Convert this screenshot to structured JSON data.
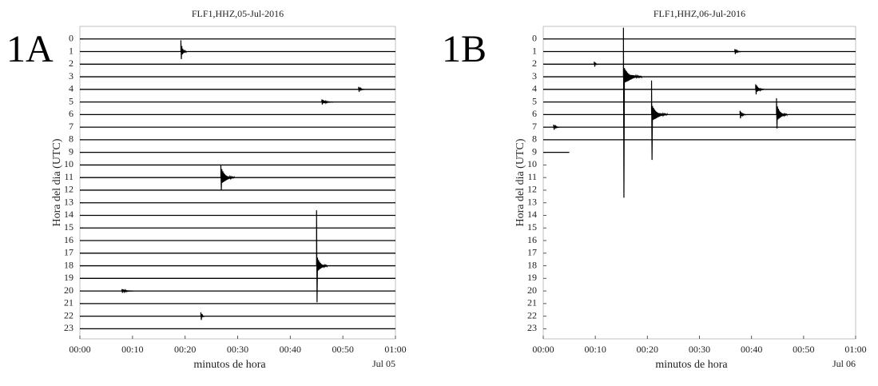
{
  "chart_data": [
    {
      "type": "helicorder",
      "panel_label": "1A",
      "title": "FLF1,HHZ,05-Jul-2016",
      "xlabel": "minutos de hora",
      "ylabel": "Hora del dia (UTC)",
      "date_label": "Jul 05",
      "xlim": [
        0,
        60
      ],
      "ylim": [
        23.8,
        -1.0
      ],
      "xticks": [
        {
          "value": 0,
          "label": "00:00"
        },
        {
          "value": 10,
          "label": "00:10"
        },
        {
          "value": 20,
          "label": "00:20"
        },
        {
          "value": 30,
          "label": "00:30"
        },
        {
          "value": 40,
          "label": "00:40"
        },
        {
          "value": 50,
          "label": "00:50"
        },
        {
          "value": 60,
          "label": "01:00"
        }
      ],
      "yticks": [
        0,
        1,
        2,
        3,
        4,
        5,
        6,
        7,
        8,
        9,
        10,
        11,
        12,
        13,
        14,
        15,
        16,
        17,
        18,
        19,
        20,
        21,
        22,
        23
      ],
      "trace_end": [
        60,
        60,
        60,
        60,
        60,
        60,
        60,
        60,
        60,
        60,
        60,
        60,
        60,
        60,
        60,
        60,
        60,
        60,
        60,
        60,
        60,
        60,
        60,
        60
      ],
      "color": "#000000",
      "events": [
        {
          "hour": 1,
          "minute": 19.2,
          "up": 0.9,
          "down": 0.6,
          "duration": 1
        },
        {
          "hour": 11,
          "minute": 26.8,
          "up": 1.0,
          "down": 1.0,
          "duration": 2.5
        },
        {
          "hour": 18,
          "minute": 45,
          "up": 4.4,
          "down": 2.9,
          "duration": 2
        },
        {
          "hour": 5,
          "minute": 46,
          "up": 0.2,
          "down": 0.2,
          "duration": 2
        },
        {
          "hour": 4,
          "minute": 53,
          "up": 0.2,
          "down": 0.2,
          "duration": 1
        },
        {
          "hour": 20,
          "minute": 8,
          "up": 0.15,
          "down": 0.15,
          "duration": 2
        },
        {
          "hour": 22,
          "minute": 23,
          "up": 0.3,
          "down": 0.3,
          "duration": 0.5
        }
      ]
    },
    {
      "type": "helicorder",
      "panel_label": "1B",
      "title": "FLF1,HHZ,06-Jul-2016",
      "xlabel": "minutos de hora",
      "ylabel": "Hora del dia (UTC)",
      "date_label": "Jul 06",
      "xlim": [
        0,
        60
      ],
      "ylim": [
        23.8,
        -1.0
      ],
      "xticks": [
        {
          "value": 0,
          "label": "00:00"
        },
        {
          "value": 10,
          "label": "00:10"
        },
        {
          "value": 20,
          "label": "00:20"
        },
        {
          "value": 30,
          "label": "00:30"
        },
        {
          "value": 40,
          "label": "00:40"
        },
        {
          "value": 50,
          "label": "00:50"
        },
        {
          "value": 60,
          "label": "01:00"
        }
      ],
      "yticks": [
        0,
        1,
        2,
        3,
        4,
        5,
        6,
        7,
        8,
        9,
        10,
        11,
        12,
        13,
        14,
        15,
        16,
        17,
        18,
        19,
        20,
        21,
        22,
        23
      ],
      "trace_end": [
        60,
        60,
        60,
        60,
        60,
        60,
        60,
        60,
        60,
        5
      ],
      "color": "#000000",
      "events": [
        {
          "hour": 3,
          "minute": 15.4,
          "up": 3.9,
          "down": 9.6,
          "duration": 3.5
        },
        {
          "hour": 6,
          "minute": 20.8,
          "up": 2.7,
          "down": 3.6,
          "duration": 3
        },
        {
          "hour": 6,
          "minute": 44.8,
          "up": 1.3,
          "down": 1.1,
          "duration": 2
        },
        {
          "hour": 4,
          "minute": 40.8,
          "up": 0.4,
          "down": 0.4,
          "duration": 1.5
        },
        {
          "hour": 1,
          "minute": 36.8,
          "up": 0.2,
          "down": 0.2,
          "duration": 1
        },
        {
          "hour": 7,
          "minute": 2,
          "up": 0.2,
          "down": 0.2,
          "duration": 1
        },
        {
          "hour": 6,
          "minute": 37.8,
          "up": 0.3,
          "down": 0.3,
          "duration": 1
        },
        {
          "hour": 2,
          "minute": 9.8,
          "up": 0.2,
          "down": 0.2,
          "duration": 0.5
        }
      ]
    }
  ]
}
